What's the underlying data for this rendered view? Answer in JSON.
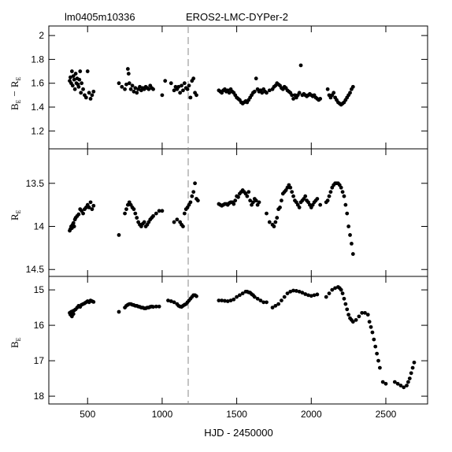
{
  "header": {
    "object_id": "lm0405m10336",
    "survey_label": "EROS2-LMC-DYPer-2"
  },
  "chart_data": [
    {
      "type": "scatter",
      "panel": "top",
      "ylabel": "B_E − R_E",
      "ylabel_parts": {
        "b": "B",
        "sub1": "E",
        "dash": "−",
        "r": "R",
        "sub2": "E"
      },
      "xlim": [
        240,
        2780
      ],
      "ylim": [
        1.05,
        2.08
      ],
      "yticks": [
        "1.2",
        "1.4",
        "1.6",
        "1.8",
        "2"
      ],
      "ytick_values": [
        1.2,
        1.4,
        1.6,
        1.8,
        2.0
      ],
      "inverted": false,
      "series": [
        {
          "x": [
            380,
            385,
            390,
            395,
            400,
            405,
            410,
            415,
            420,
            425,
            430,
            435,
            440,
            445,
            450,
            455,
            460,
            470,
            480,
            490,
            500,
            510,
            520,
            530,
            540
          ],
          "y": [
            1.62,
            1.65,
            1.6,
            1.7,
            1.58,
            1.66,
            1.63,
            1.55,
            1.68,
            1.6,
            1.64,
            1.59,
            1.57,
            1.63,
            1.7,
            1.52,
            1.6,
            1.55,
            1.5,
            1.48,
            1.7,
            1.52,
            1.47,
            1.5,
            1.53
          ]
        },
        {
          "x": [
            710,
            730,
            750,
            760,
            770,
            775,
            780,
            790,
            800,
            810,
            820,
            830,
            840,
            850,
            860,
            870,
            880,
            890,
            900,
            910,
            920,
            930,
            940
          ],
          "y": [
            1.6,
            1.57,
            1.55,
            1.59,
            1.72,
            1.68,
            1.6,
            1.55,
            1.58,
            1.53,
            1.56,
            1.52,
            1.55,
            1.57,
            1.54,
            1.56,
            1.55,
            1.57,
            1.56,
            1.55,
            1.58,
            1.56,
            1.55
          ]
        },
        {
          "x": [
            1000,
            1020,
            1060,
            1080,
            1090,
            1100,
            1110,
            1120,
            1130,
            1140,
            1150,
            1160,
            1170,
            1180,
            1190,
            1200,
            1210,
            1220,
            1230
          ],
          "y": [
            1.5,
            1.62,
            1.6,
            1.54,
            1.57,
            1.55,
            1.57,
            1.52,
            1.58,
            1.54,
            1.6,
            1.56,
            1.55,
            1.58,
            1.48,
            1.62,
            1.64,
            1.52,
            1.5
          ]
        },
        {
          "x": [
            1380,
            1390,
            1400,
            1410,
            1420,
            1430,
            1440,
            1450,
            1460,
            1470,
            1480,
            1490,
            1500,
            1510,
            1520,
            1530,
            1540,
            1550,
            1560,
            1570,
            1580,
            1590,
            1600,
            1610,
            1620,
            1630,
            1640,
            1650,
            1660,
            1670,
            1680,
            1690
          ],
          "y": [
            1.54,
            1.53,
            1.52,
            1.54,
            1.55,
            1.53,
            1.54,
            1.52,
            1.55,
            1.53,
            1.52,
            1.5,
            1.48,
            1.47,
            1.46,
            1.44,
            1.43,
            1.44,
            1.45,
            1.44,
            1.46,
            1.48,
            1.5,
            1.52,
            1.53,
            1.64,
            1.55,
            1.53,
            1.54,
            1.52,
            1.55,
            1.53
          ]
        },
        {
          "x": [
            1700,
            1720,
            1740,
            1750,
            1760,
            1770,
            1780,
            1790,
            1800,
            1810,
            1820,
            1830,
            1840,
            1850,
            1860,
            1870,
            1880,
            1890,
            1900,
            1910,
            1920,
            1930,
            1940,
            1950,
            1960,
            1970,
            1980,
            1990,
            2000,
            2010,
            2020,
            2030,
            2040,
            2050,
            2060
          ],
          "y": [
            1.52,
            1.54,
            1.55,
            1.57,
            1.58,
            1.6,
            1.59,
            1.58,
            1.56,
            1.55,
            1.57,
            1.56,
            1.54,
            1.53,
            1.52,
            1.5,
            1.47,
            1.5,
            1.48,
            1.5,
            1.52,
            1.75,
            1.5,
            1.51,
            1.5,
            1.49,
            1.5,
            1.51,
            1.5,
            1.49,
            1.5,
            1.48,
            1.47,
            1.46,
            1.47
          ]
        },
        {
          "x": [
            2110,
            2120,
            2130,
            2140,
            2150,
            2160,
            2170,
            2180,
            2190,
            2200,
            2210,
            2220,
            2230,
            2240,
            2250,
            2260,
            2270,
            2280
          ],
          "y": [
            1.55,
            1.5,
            1.48,
            1.5,
            1.52,
            1.48,
            1.46,
            1.44,
            1.43,
            1.42,
            1.43,
            1.44,
            1.46,
            1.48,
            1.5,
            1.52,
            1.55,
            1.57
          ]
        }
      ]
    },
    {
      "type": "scatter",
      "panel": "middle",
      "ylabel": "R_E",
      "ylabel_parts": {
        "r": "R",
        "sub": "E"
      },
      "xlim": [
        240,
        2780
      ],
      "ylim": [
        13.1,
        14.58
      ],
      "yticks": [
        "13.5",
        "14",
        "14.5"
      ],
      "ytick_values": [
        13.5,
        14.0,
        14.5
      ],
      "inverted": true,
      "series": [
        {
          "x": [
            380,
            385,
            390,
            395,
            400,
            405,
            410,
            415,
            420,
            430,
            440,
            450,
            460,
            470,
            480,
            490,
            500,
            510,
            520,
            530,
            540
          ],
          "y": [
            14.05,
            14.03,
            14.0,
            14.02,
            13.98,
            13.96,
            14.0,
            13.92,
            13.9,
            13.88,
            13.86,
            13.8,
            13.82,
            13.85,
            13.8,
            13.78,
            13.75,
            13.78,
            13.72,
            13.8,
            13.76
          ]
        },
        {
          "x": [
            710,
            750,
            760,
            770,
            780,
            790,
            800,
            810,
            820,
            830,
            840,
            850,
            860,
            870,
            880,
            890,
            900,
            910,
            920,
            930,
            940,
            960,
            980,
            1000
          ],
          "y": [
            14.1,
            13.85,
            13.8,
            13.75,
            13.72,
            13.75,
            13.78,
            13.8,
            13.85,
            13.9,
            13.95,
            13.98,
            14.0,
            13.97,
            13.95,
            14.0,
            13.98,
            13.95,
            13.92,
            13.9,
            13.88,
            13.85,
            13.82,
            13.82
          ]
        },
        {
          "x": [
            1080,
            1100,
            1120,
            1130,
            1140,
            1150,
            1160,
            1170,
            1180,
            1190,
            1200,
            1210,
            1220,
            1230,
            1240
          ],
          "y": [
            13.95,
            13.92,
            13.95,
            13.98,
            14.0,
            13.85,
            13.8,
            13.78,
            13.75,
            13.72,
            13.65,
            13.6,
            13.5,
            13.68,
            13.7
          ]
        },
        {
          "x": [
            1380,
            1390,
            1400,
            1410,
            1420,
            1430,
            1440,
            1450,
            1460,
            1470,
            1480,
            1490,
            1500,
            1510,
            1520,
            1530,
            1540,
            1550,
            1560,
            1570,
            1580,
            1590,
            1600,
            1610,
            1620,
            1630,
            1640,
            1650
          ],
          "y": [
            13.74,
            13.75,
            13.76,
            13.75,
            13.74,
            13.74,
            13.75,
            13.73,
            13.72,
            13.72,
            13.74,
            13.7,
            13.65,
            13.66,
            13.62,
            13.6,
            13.58,
            13.6,
            13.62,
            13.65,
            13.6,
            13.7,
            13.75,
            13.72,
            13.68,
            13.7,
            13.75,
            13.72
          ]
        },
        {
          "x": [
            1700,
            1720,
            1740,
            1750,
            1760,
            1770,
            1780,
            1790,
            1800,
            1810,
            1820,
            1830,
            1840,
            1850,
            1860,
            1870,
            1880,
            1890,
            1900,
            1910,
            1920,
            1930,
            1940,
            1950,
            1960,
            1970,
            1980,
            1990,
            2000,
            2010,
            2020,
            2030,
            2040
          ],
          "y": [
            13.85,
            13.95,
            13.98,
            14.0,
            13.95,
            13.9,
            13.8,
            13.78,
            13.7,
            13.62,
            13.6,
            13.58,
            13.55,
            13.52,
            13.55,
            13.6,
            13.65,
            13.7,
            13.72,
            13.75,
            13.78,
            13.72,
            13.7,
            13.68,
            13.65,
            13.7,
            13.72,
            13.75,
            13.78,
            13.75,
            13.72,
            13.7,
            13.68
          ]
        },
        {
          "x": [
            2060,
            2100,
            2110,
            2120,
            2130,
            2140,
            2150,
            2160,
            2170,
            2180,
            2190,
            2200,
            2210,
            2220,
            2230,
            2240,
            2250,
            2260,
            2270,
            2280
          ],
          "y": [
            13.75,
            13.72,
            13.7,
            13.65,
            13.6,
            13.55,
            13.52,
            13.5,
            13.5,
            13.5,
            13.52,
            13.55,
            13.6,
            13.65,
            13.75,
            13.85,
            14.0,
            14.1,
            14.2,
            14.32
          ]
        }
      ]
    },
    {
      "type": "scatter",
      "panel": "bottom",
      "ylabel": "B_E",
      "ylabel_parts": {
        "b": "B",
        "sub": "E"
      },
      "xlabel": "HJD - 2450000",
      "xlim": [
        240,
        2780
      ],
      "xticks": [
        "500",
        "1000",
        "1500",
        "2000",
        "2500"
      ],
      "xtick_values": [
        500,
        1000,
        1500,
        2000,
        2500
      ],
      "ylim": [
        14.62,
        18.22
      ],
      "yticks": [
        "15",
        "16",
        "17",
        "18"
      ],
      "ytick_values": [
        15,
        16,
        17,
        18
      ],
      "inverted": true,
      "series": [
        {
          "x": [
            380,
            385,
            390,
            395,
            400,
            405,
            410,
            420,
            430,
            440,
            450,
            460,
            470,
            480,
            490,
            500,
            510,
            520,
            530,
            540
          ],
          "y": [
            15.65,
            15.7,
            15.62,
            15.75,
            15.6,
            15.68,
            15.58,
            15.55,
            15.5,
            15.45,
            15.48,
            15.42,
            15.4,
            15.38,
            15.35,
            15.32,
            15.35,
            15.3,
            15.32,
            15.34
          ]
        },
        {
          "x": [
            710,
            750,
            760,
            770,
            780,
            790,
            800,
            810,
            820,
            830,
            840,
            850,
            860,
            870,
            880,
            890,
            900,
            910,
            920,
            930,
            940,
            960,
            980
          ],
          "y": [
            15.62,
            15.5,
            15.45,
            15.42,
            15.4,
            15.4,
            15.42,
            15.43,
            15.45,
            15.45,
            15.47,
            15.48,
            15.5,
            15.5,
            15.52,
            15.52,
            15.5,
            15.5,
            15.48,
            15.47,
            15.48,
            15.47,
            15.47
          ]
        },
        {
          "x": [
            1040,
            1060,
            1080,
            1100,
            1110,
            1120,
            1130,
            1140,
            1150,
            1160,
            1170,
            1180,
            1190,
            1200,
            1210,
            1220,
            1230
          ],
          "y": [
            15.3,
            15.32,
            15.35,
            15.4,
            15.45,
            15.47,
            15.48,
            15.45,
            15.42,
            15.4,
            15.35,
            15.3,
            15.25,
            15.2,
            15.15,
            15.15,
            15.18
          ]
        },
        {
          "x": [
            1380,
            1400,
            1420,
            1440,
            1460,
            1480,
            1500,
            1520,
            1540,
            1560,
            1570,
            1580,
            1590,
            1600,
            1610,
            1620,
            1640,
            1660,
            1680,
            1700
          ],
          "y": [
            15.3,
            15.3,
            15.31,
            15.32,
            15.3,
            15.27,
            15.2,
            15.15,
            15.1,
            15.05,
            15.05,
            15.07,
            15.08,
            15.12,
            15.15,
            15.2,
            15.25,
            15.3,
            15.35,
            15.35
          ]
        },
        {
          "x": [
            1740,
            1760,
            1780,
            1800,
            1820,
            1840,
            1860,
            1880,
            1900,
            1920,
            1940,
            1960,
            1980,
            2000,
            2020,
            2040
          ],
          "y": [
            15.5,
            15.45,
            15.4,
            15.3,
            15.2,
            15.1,
            15.05,
            15.02,
            15.03,
            15.05,
            15.08,
            15.12,
            15.15,
            15.17,
            15.15,
            15.13
          ]
        },
        {
          "x": [
            2100,
            2120,
            2140,
            2160,
            2180,
            2190,
            2200,
            2210,
            2220,
            2230,
            2240,
            2250,
            2260,
            2270,
            2280,
            2300,
            2320,
            2340,
            2360,
            2380
          ],
          "y": [
            15.2,
            15.1,
            15.0,
            14.95,
            14.92,
            14.95,
            15.0,
            15.1,
            15.25,
            15.4,
            15.55,
            15.7,
            15.8,
            15.85,
            15.9,
            15.85,
            15.75,
            15.65,
            15.65,
            15.7
          ]
        },
        {
          "x": [
            2390,
            2400,
            2410,
            2420,
            2430,
            2440,
            2450,
            2460,
            2480,
            2500,
            2560,
            2580,
            2600,
            2620,
            2640,
            2650,
            2660,
            2670,
            2680,
            2690
          ],
          "y": [
            15.9,
            16.05,
            16.2,
            16.4,
            16.6,
            16.8,
            17.0,
            17.2,
            17.6,
            17.65,
            17.6,
            17.65,
            17.7,
            17.75,
            17.7,
            17.6,
            17.5,
            17.35,
            17.2,
            17.05
          ]
        }
      ]
    }
  ]
}
